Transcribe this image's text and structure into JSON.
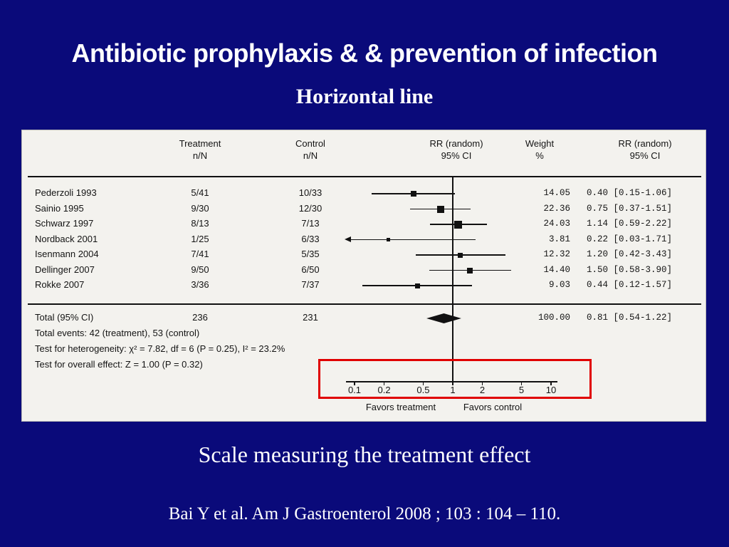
{
  "slide": {
    "title": "Antibiotic prophylaxis & & prevention of infection",
    "subtitle": "Horizontal line",
    "caption": "Scale measuring the treatment effect",
    "citation": "Bai Y et al. Am J Gastroenterol 2008 ; 103 : 104 – 110."
  },
  "chart_data": {
    "type": "forest-plot",
    "effect_measure": "RR (random)",
    "columns": [
      {
        "line1": "Treatment",
        "line2": "n/N"
      },
      {
        "line1": "Control",
        "line2": "n/N"
      },
      {
        "line1": "RR (random)",
        "line2": "95% CI"
      },
      {
        "line1": "Weight",
        "line2": "%"
      },
      {
        "line1": "RR (random)",
        "line2": "95% CI"
      }
    ],
    "studies": [
      {
        "study": "Pederzoli 1993",
        "treatment_nN": "5/41",
        "control_nN": "10/33",
        "rr": 0.4,
        "ci_low": 0.15,
        "ci_high": 1.06,
        "weight_pct": "14.05",
        "rr_ci_text": "0.40 [0.15-1.06]"
      },
      {
        "study": "Sainio 1995",
        "treatment_nN": "9/30",
        "control_nN": "12/30",
        "rr": 0.75,
        "ci_low": 0.37,
        "ci_high": 1.51,
        "weight_pct": "22.36",
        "rr_ci_text": "0.75 [0.37-1.51]"
      },
      {
        "study": "Schwarz 1997",
        "treatment_nN": "8/13",
        "control_nN": "7/13",
        "rr": 1.14,
        "ci_low": 0.59,
        "ci_high": 2.22,
        "weight_pct": "24.03",
        "rr_ci_text": "1.14 [0.59-2.22]"
      },
      {
        "study": "Nordback 2001",
        "treatment_nN": "1/25",
        "control_nN": "6/33",
        "rr": 0.22,
        "ci_low": 0.03,
        "ci_high": 1.71,
        "weight_pct": "3.81",
        "rr_ci_text": "0.22 [0.03-1.71]"
      },
      {
        "study": "Isenmann 2004",
        "treatment_nN": "7/41",
        "control_nN": "5/35",
        "rr": 1.2,
        "ci_low": 0.42,
        "ci_high": 3.43,
        "weight_pct": "12.32",
        "rr_ci_text": "1.20 [0.42-3.43]"
      },
      {
        "study": "Dellinger 2007",
        "treatment_nN": "9/50",
        "control_nN": "6/50",
        "rr": 1.5,
        "ci_low": 0.58,
        "ci_high": 3.9,
        "weight_pct": "14.40",
        "rr_ci_text": "1.50 [0.58-3.90]"
      },
      {
        "study": "Rokke 2007",
        "treatment_nN": "3/36",
        "control_nN": "7/37",
        "rr": 0.44,
        "ci_low": 0.12,
        "ci_high": 1.57,
        "weight_pct": "9.03",
        "rr_ci_text": "0.44 [0.12-1.57]"
      }
    ],
    "total": {
      "label": "Total (95% CI)",
      "treatment_n": "236",
      "control_n": "231",
      "rr": 0.81,
      "ci_low": 0.54,
      "ci_high": 1.22,
      "weight_pct": "100.00",
      "rr_ci_text": "0.81 [0.54-1.22]"
    },
    "footnotes": [
      "Total events: 42 (treatment), 53 (control)",
      "Test for heterogeneity: χ² = 7.82, df = 6 (P = 0.25), I² = 23.2%",
      "Test for overall effect: Z = 1.00 (P = 0.32)"
    ],
    "axis": {
      "scale": "log",
      "ticks": [
        0.1,
        0.2,
        0.5,
        1,
        2,
        5,
        10
      ],
      "xlim": [
        0.1,
        10
      ]
    },
    "axis_labels": {
      "left": "Favors treatment",
      "right": "Favors control"
    },
    "highlight": {
      "color": "#e00000",
      "target": "scale"
    }
  }
}
